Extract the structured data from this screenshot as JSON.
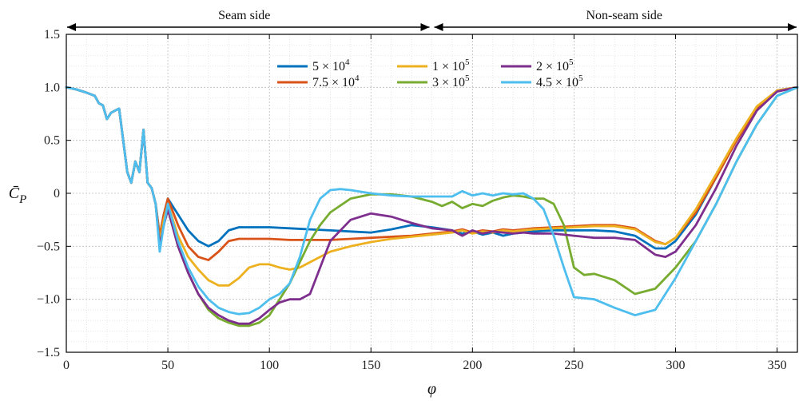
{
  "chart_data": {
    "type": "line",
    "xlabel": "φ",
    "ylabel": "C̄P",
    "xlim": [
      0,
      360
    ],
    "ylim": [
      -1.5,
      1.5
    ],
    "xticks": [
      0,
      50,
      100,
      150,
      200,
      250,
      300,
      350
    ],
    "xtick_labels": [
      "0",
      "50",
      "100",
      "150",
      "200",
      "250",
      "300",
      "350"
    ],
    "yticks": [
      -1.5,
      -1.0,
      -0.5,
      0,
      0.5,
      1.0,
      1.5
    ],
    "ytick_labels": [
      "−1.5",
      "−1.0",
      "−0.5",
      "0",
      "0.5",
      "1.0",
      "1.5"
    ],
    "grid": true,
    "legend_position": "top-center",
    "annotations": {
      "left_label": "Seam side",
      "right_label": "Non-seam side"
    },
    "series": [
      {
        "name": "5 × 10⁴",
        "name_base": "5 × 10",
        "name_exp": "4",
        "color": "#0072BD",
        "x": [
          0,
          5,
          10,
          14,
          16,
          18,
          20,
          22,
          24,
          26,
          28,
          30,
          32,
          34,
          36,
          38,
          40,
          42,
          44,
          46,
          48,
          50,
          55,
          60,
          65,
          70,
          75,
          80,
          85,
          90,
          100,
          110,
          120,
          130,
          140,
          150,
          160,
          170,
          180,
          190,
          195,
          200,
          205,
          210,
          215,
          220,
          225,
          230,
          240,
          250,
          260,
          270,
          280,
          290,
          295,
          300,
          310,
          320,
          330,
          340,
          350,
          360
        ],
        "y": [
          1.0,
          0.98,
          0.95,
          0.92,
          0.85,
          0.83,
          0.7,
          0.76,
          0.78,
          0.8,
          0.5,
          0.2,
          0.1,
          0.3,
          0.2,
          0.6,
          0.1,
          0.05,
          -0.1,
          -0.4,
          -0.2,
          -0.05,
          -0.2,
          -0.35,
          -0.45,
          -0.5,
          -0.45,
          -0.35,
          -0.32,
          -0.32,
          -0.32,
          -0.33,
          -0.34,
          -0.35,
          -0.36,
          -0.37,
          -0.34,
          -0.3,
          -0.32,
          -0.35,
          -0.38,
          -0.36,
          -0.39,
          -0.37,
          -0.4,
          -0.38,
          -0.37,
          -0.36,
          -0.35,
          -0.35,
          -0.35,
          -0.36,
          -0.4,
          -0.52,
          -0.52,
          -0.45,
          -0.2,
          0.15,
          0.5,
          0.8,
          0.97,
          1.0
        ]
      },
      {
        "name": "7.5 × 10⁴",
        "name_base": "7.5 × 10",
        "name_exp": "4",
        "color": "#D95319",
        "x": [
          0,
          5,
          10,
          14,
          16,
          18,
          20,
          22,
          24,
          26,
          28,
          30,
          32,
          34,
          36,
          38,
          40,
          42,
          44,
          46,
          48,
          50,
          55,
          60,
          65,
          70,
          75,
          80,
          85,
          90,
          100,
          110,
          120,
          130,
          140,
          150,
          160,
          170,
          180,
          190,
          195,
          200,
          205,
          210,
          215,
          220,
          225,
          230,
          240,
          250,
          260,
          270,
          280,
          290,
          295,
          300,
          310,
          320,
          330,
          340,
          350,
          360
        ],
        "y": [
          1.0,
          0.98,
          0.95,
          0.92,
          0.85,
          0.83,
          0.7,
          0.76,
          0.78,
          0.8,
          0.5,
          0.2,
          0.1,
          0.3,
          0.2,
          0.6,
          0.1,
          0.05,
          -0.1,
          -0.4,
          -0.2,
          -0.05,
          -0.3,
          -0.5,
          -0.6,
          -0.63,
          -0.55,
          -0.45,
          -0.43,
          -0.43,
          -0.43,
          -0.44,
          -0.44,
          -0.44,
          -0.43,
          -0.42,
          -0.41,
          -0.4,
          -0.38,
          -0.36,
          -0.34,
          -0.37,
          -0.35,
          -0.36,
          -0.34,
          -0.35,
          -0.34,
          -0.33,
          -0.32,
          -0.31,
          -0.3,
          -0.3,
          -0.33,
          -0.45,
          -0.48,
          -0.42,
          -0.18,
          0.15,
          0.5,
          0.8,
          0.97,
          1.0
        ]
      },
      {
        "name": "1 × 10⁵",
        "name_base": "1 × 10",
        "name_exp": "5",
        "color": "#EDB120",
        "x": [
          0,
          5,
          10,
          14,
          16,
          18,
          20,
          22,
          24,
          26,
          28,
          30,
          32,
          34,
          36,
          38,
          40,
          42,
          44,
          46,
          48,
          50,
          55,
          60,
          65,
          70,
          75,
          80,
          85,
          90,
          95,
          100,
          105,
          110,
          115,
          120,
          130,
          140,
          150,
          160,
          170,
          180,
          190,
          195,
          200,
          205,
          210,
          215,
          220,
          225,
          230,
          240,
          250,
          260,
          270,
          280,
          290,
          295,
          300,
          310,
          320,
          330,
          340,
          350,
          360
        ],
        "y": [
          1.0,
          0.98,
          0.95,
          0.92,
          0.85,
          0.83,
          0.7,
          0.76,
          0.78,
          0.8,
          0.5,
          0.2,
          0.1,
          0.3,
          0.2,
          0.6,
          0.1,
          0.05,
          -0.1,
          -0.45,
          -0.25,
          -0.1,
          -0.4,
          -0.6,
          -0.72,
          -0.82,
          -0.87,
          -0.87,
          -0.8,
          -0.7,
          -0.67,
          -0.67,
          -0.7,
          -0.72,
          -0.7,
          -0.65,
          -0.55,
          -0.5,
          -0.46,
          -0.43,
          -0.41,
          -0.39,
          -0.37,
          -0.35,
          -0.38,
          -0.36,
          -0.37,
          -0.35,
          -0.36,
          -0.35,
          -0.34,
          -0.33,
          -0.32,
          -0.31,
          -0.31,
          -0.34,
          -0.46,
          -0.48,
          -0.42,
          -0.15,
          0.18,
          0.52,
          0.82,
          0.97,
          1.0
        ]
      },
      {
        "name": "3 × 10⁵",
        "name_base": "3 × 10",
        "name_exp": "5",
        "color": "#77AC30",
        "x": [
          0,
          5,
          10,
          14,
          16,
          18,
          20,
          22,
          24,
          26,
          28,
          30,
          32,
          34,
          36,
          38,
          40,
          42,
          44,
          46,
          48,
          50,
          55,
          60,
          65,
          70,
          75,
          80,
          85,
          90,
          95,
          100,
          105,
          110,
          115,
          120,
          125,
          130,
          140,
          150,
          160,
          170,
          180,
          185,
          190,
          195,
          200,
          205,
          210,
          215,
          220,
          225,
          230,
          235,
          240,
          245,
          250,
          255,
          260,
          270,
          280,
          290,
          300,
          310,
          320,
          330,
          340,
          350,
          360
        ],
        "y": [
          1.0,
          0.98,
          0.95,
          0.92,
          0.85,
          0.83,
          0.7,
          0.76,
          0.78,
          0.8,
          0.5,
          0.2,
          0.1,
          0.3,
          0.2,
          0.6,
          0.1,
          0.05,
          -0.1,
          -0.5,
          -0.3,
          -0.15,
          -0.5,
          -0.75,
          -0.95,
          -1.1,
          -1.18,
          -1.22,
          -1.25,
          -1.25,
          -1.22,
          -1.15,
          -1.0,
          -0.85,
          -0.65,
          -0.45,
          -0.3,
          -0.18,
          -0.05,
          -0.01,
          -0.01,
          -0.03,
          -0.08,
          -0.12,
          -0.08,
          -0.14,
          -0.1,
          -0.12,
          -0.07,
          -0.04,
          -0.02,
          -0.03,
          -0.05,
          -0.05,
          -0.1,
          -0.3,
          -0.7,
          -0.77,
          -0.76,
          -0.82,
          -0.95,
          -0.9,
          -0.7,
          -0.45,
          -0.1,
          0.3,
          0.65,
          0.92,
          1.0
        ]
      },
      {
        "name": "2 × 10⁵",
        "name_base": "2 × 10",
        "name_exp": "5",
        "color": "#7E2F8E",
        "x": [
          0,
          5,
          10,
          14,
          16,
          18,
          20,
          22,
          24,
          26,
          28,
          30,
          32,
          34,
          36,
          38,
          40,
          42,
          44,
          46,
          48,
          50,
          55,
          60,
          65,
          70,
          75,
          80,
          85,
          90,
          95,
          100,
          105,
          110,
          115,
          120,
          125,
          130,
          140,
          150,
          160,
          170,
          180,
          190,
          195,
          200,
          205,
          210,
          215,
          220,
          225,
          230,
          240,
          250,
          260,
          270,
          280,
          290,
          295,
          300,
          310,
          320,
          330,
          340,
          350,
          360
        ],
        "y": [
          1.0,
          0.98,
          0.95,
          0.92,
          0.85,
          0.83,
          0.7,
          0.76,
          0.78,
          0.8,
          0.5,
          0.2,
          0.1,
          0.3,
          0.2,
          0.6,
          0.1,
          0.05,
          -0.1,
          -0.5,
          -0.3,
          -0.15,
          -0.5,
          -0.75,
          -0.95,
          -1.08,
          -1.15,
          -1.2,
          -1.23,
          -1.23,
          -1.18,
          -1.1,
          -1.03,
          -1.0,
          -1.0,
          -0.95,
          -0.7,
          -0.45,
          -0.25,
          -0.19,
          -0.22,
          -0.28,
          -0.33,
          -0.35,
          -0.4,
          -0.35,
          -0.38,
          -0.36,
          -0.37,
          -0.38,
          -0.37,
          -0.38,
          -0.38,
          -0.4,
          -0.42,
          -0.42,
          -0.44,
          -0.58,
          -0.6,
          -0.55,
          -0.3,
          0.05,
          0.45,
          0.78,
          0.96,
          1.0
        ]
      },
      {
        "name": "4.5 × 10⁵",
        "name_base": "4.5 × 10",
        "name_exp": "5",
        "color": "#4DBEEE",
        "x": [
          0,
          5,
          10,
          14,
          16,
          18,
          20,
          22,
          24,
          26,
          28,
          30,
          32,
          34,
          36,
          38,
          40,
          42,
          44,
          46,
          48,
          50,
          55,
          60,
          65,
          70,
          75,
          80,
          85,
          90,
          95,
          100,
          105,
          110,
          115,
          120,
          125,
          130,
          135,
          140,
          150,
          160,
          170,
          180,
          190,
          195,
          200,
          205,
          210,
          215,
          220,
          225,
          230,
          235,
          240,
          245,
          250,
          260,
          270,
          280,
          290,
          300,
          310,
          320,
          330,
          340,
          350,
          360
        ],
        "y": [
          1.0,
          0.98,
          0.95,
          0.92,
          0.85,
          0.83,
          0.7,
          0.76,
          0.78,
          0.8,
          0.5,
          0.2,
          0.1,
          0.3,
          0.2,
          0.6,
          0.1,
          0.05,
          -0.1,
          -0.55,
          -0.3,
          -0.1,
          -0.45,
          -0.7,
          -0.88,
          -1.0,
          -1.08,
          -1.12,
          -1.14,
          -1.13,
          -1.08,
          -1.0,
          -0.95,
          -0.85,
          -0.6,
          -0.25,
          -0.05,
          0.03,
          0.04,
          0.03,
          0.0,
          -0.02,
          -0.03,
          -0.03,
          -0.03,
          0.02,
          -0.02,
          0.0,
          -0.02,
          0.0,
          -0.01,
          0.0,
          -0.05,
          -0.15,
          -0.4,
          -0.7,
          -0.98,
          -1.0,
          -1.08,
          -1.15,
          -1.1,
          -0.8,
          -0.45,
          -0.1,
          0.3,
          0.65,
          0.92,
          1.0
        ]
      }
    ]
  }
}
